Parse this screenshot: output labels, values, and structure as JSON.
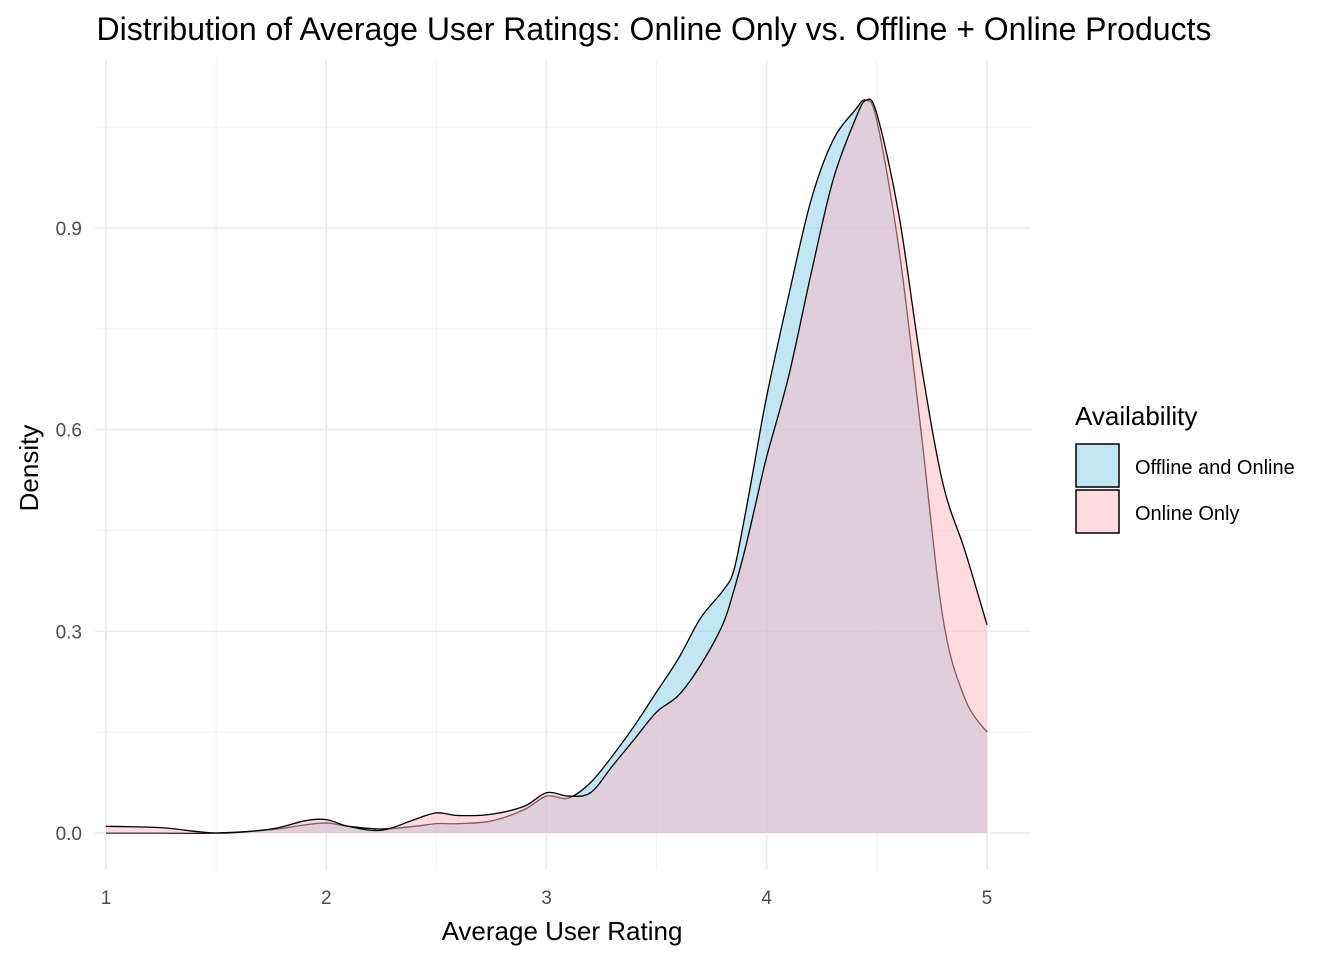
{
  "chart_data": {
    "type": "area",
    "subtype": "density",
    "title": "Distribution of Average User Ratings: Online Only vs. Offline + Online Products",
    "xlabel": "Average User Rating",
    "ylabel": "Density",
    "xlim": [
      0.95,
      5.2
    ],
    "ylim": [
      -0.055,
      1.15
    ],
    "x_ticks": [
      1,
      2,
      3,
      4,
      5
    ],
    "x_tick_labels": [
      "1",
      "2",
      "3",
      "4",
      "5"
    ],
    "y_ticks": [
      0.0,
      0.3,
      0.6,
      0.9
    ],
    "y_tick_labels": [
      "0.0",
      "0.3",
      "0.6",
      "0.9"
    ],
    "grid": true,
    "legend": {
      "title": "Availability",
      "position": "right"
    },
    "series": [
      {
        "name": "Offline and Online",
        "color": "#87CEEB",
        "opacity": 0.5,
        "x": [
          1.0,
          1.25,
          1.5,
          1.75,
          1.9,
          2.0,
          2.1,
          2.25,
          2.4,
          2.5,
          2.6,
          2.75,
          2.9,
          3.0,
          3.1,
          3.2,
          3.3,
          3.4,
          3.5,
          3.6,
          3.7,
          3.8,
          3.85,
          3.9,
          3.95,
          4.0,
          4.1,
          4.2,
          4.3,
          4.4,
          4.45,
          4.5,
          4.6,
          4.7,
          4.8,
          4.9,
          5.0
        ],
        "y": [
          0.0,
          0.0,
          0.0,
          0.005,
          0.012,
          0.015,
          0.01,
          0.006,
          0.01,
          0.014,
          0.014,
          0.018,
          0.035,
          0.055,
          0.052,
          0.075,
          0.115,
          0.16,
          0.21,
          0.26,
          0.32,
          0.36,
          0.39,
          0.47,
          0.56,
          0.65,
          0.8,
          0.94,
          1.03,
          1.075,
          1.09,
          1.06,
          0.87,
          0.6,
          0.32,
          0.2,
          0.15
        ]
      },
      {
        "name": "Online Only",
        "color": "#FFB6C1",
        "opacity": 0.5,
        "x": [
          1.0,
          1.25,
          1.5,
          1.75,
          1.9,
          2.0,
          2.1,
          2.25,
          2.4,
          2.5,
          2.6,
          2.75,
          2.9,
          3.0,
          3.1,
          3.2,
          3.3,
          3.4,
          3.5,
          3.6,
          3.7,
          3.8,
          3.85,
          3.9,
          3.95,
          4.0,
          4.1,
          4.2,
          4.3,
          4.4,
          4.45,
          4.5,
          4.6,
          4.7,
          4.8,
          4.9,
          5.0
        ],
        "y": [
          0.01,
          0.008,
          0.0,
          0.006,
          0.018,
          0.02,
          0.01,
          0.004,
          0.02,
          0.03,
          0.026,
          0.028,
          0.04,
          0.06,
          0.055,
          0.06,
          0.1,
          0.14,
          0.18,
          0.205,
          0.25,
          0.31,
          0.36,
          0.42,
          0.49,
          0.56,
          0.68,
          0.83,
          0.97,
          1.06,
          1.09,
          1.07,
          0.92,
          0.7,
          0.52,
          0.42,
          0.31
        ]
      }
    ]
  }
}
